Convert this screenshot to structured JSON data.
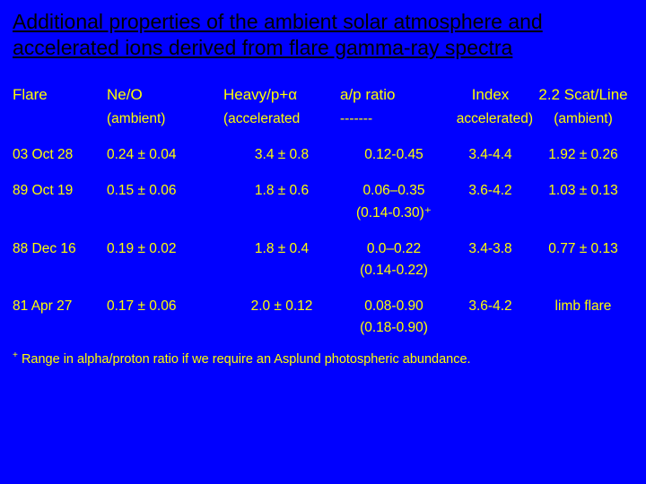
{
  "colors": {
    "background": "#0000ff",
    "title": "#000000",
    "text": "#ffff00"
  },
  "title": "Additional properties of the ambient solar atmosphere and accelerated ions derived from flare gamma-ray spectra",
  "headers1": {
    "flare": "Flare",
    "neo": "Ne/O",
    "heavy": "Heavy/p+α",
    "ap": "a/p ratio",
    "index": "Index",
    "scat": "2.2 Scat/Line"
  },
  "headers2": {
    "ambient1": "(ambient)",
    "accel_left": "(accelerated",
    "dashes": "-------",
    "accel_right": "accelerated)",
    "ambient2": "(ambient)"
  },
  "rows": [
    {
      "flare": "03 Oct 28",
      "neo": "0.24 ± 0.04",
      "heavy": "3.4 ± 0.8",
      "ap": "0.12-0.45",
      "ap_sub": "",
      "index": "3.4-4.4",
      "scat": "1.92 ± 0.26"
    },
    {
      "flare": "89 Oct 19",
      "neo": "0.15 ± 0.06",
      "heavy": "1.8 ± 0.6",
      "ap": "0.06–0.35",
      "ap_sub": "(0.14-0.30)⁺",
      "index": "3.6-4.2",
      "scat": "1.03 ± 0.13"
    },
    {
      "flare": "88 Dec 16",
      "neo": "0.19 ± 0.02",
      "heavy": "1.8 ± 0.4",
      "ap": "0.0–0.22",
      "ap_sub": "(0.14-0.22)",
      "index": "3.4-3.8",
      "scat": "0.77 ± 0.13"
    },
    {
      "flare": "81 Apr 27",
      "neo": "0.17 ± 0.06",
      "heavy": "2.0 ± 0.12",
      "ap": "0.08-0.90",
      "ap_sub": "(0.18-0.90)",
      "index": "3.6-4.2",
      "scat": "limb flare"
    }
  ],
  "footnote_marker": "+",
  "footnote": " Range in alpha/proton ratio if we require an Asplund photospheric abundance."
}
